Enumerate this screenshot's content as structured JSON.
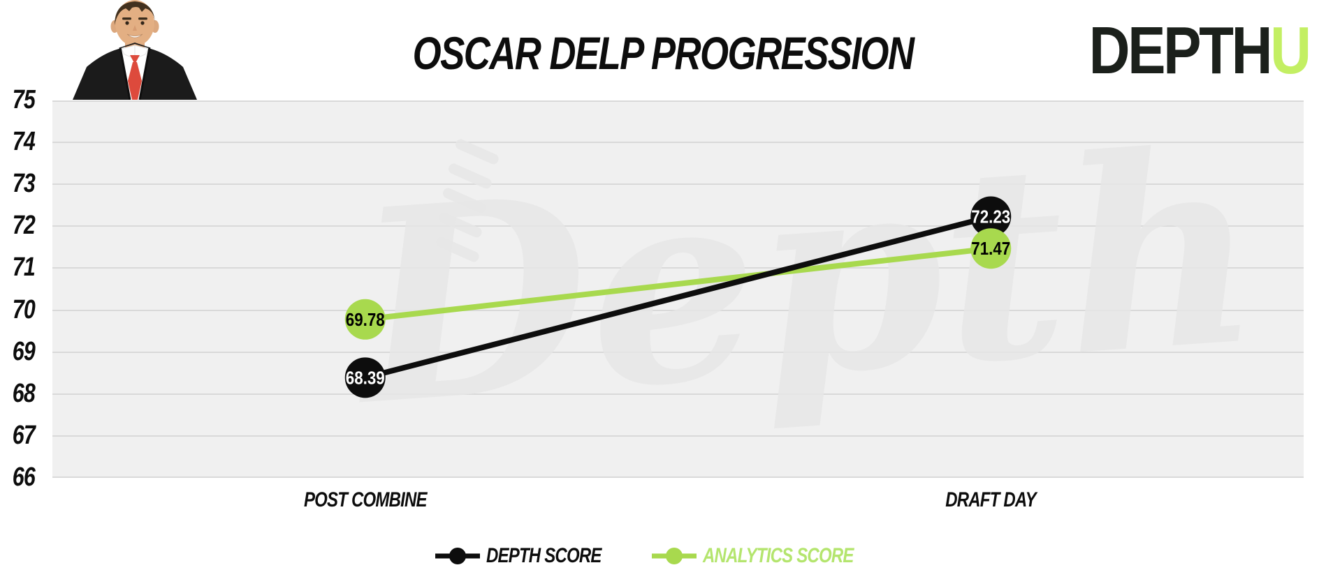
{
  "title": "OSCAR DELP PROGRESSION",
  "logo": {
    "depth": "DEPTH",
    "u": "U"
  },
  "watermark": "Depth",
  "photo": {
    "icon": "player-headshot"
  },
  "legend": [
    {
      "label": "DEPTH SCORE",
      "color": "#0d0d0d",
      "label_color": "#0d0d0d"
    },
    {
      "label": "ANALYTICS SCORE",
      "color": "#a8d94e",
      "label_color": "#b4e56e"
    }
  ],
  "chart_data": {
    "type": "line",
    "title": "OSCAR DELP PROGRESSION",
    "categories": [
      "POST COMBINE",
      "DRAFT DAY"
    ],
    "series": [
      {
        "name": "DEPTH SCORE",
        "color": "#0d0d0d",
        "label_color": "#ffffff",
        "values": [
          68.39,
          72.23
        ]
      },
      {
        "name": "ANALYTICS SCORE",
        "color": "#a8d94e",
        "label_color": "#000000",
        "values": [
          69.78,
          71.47
        ]
      }
    ],
    "ylim": [
      66,
      75
    ],
    "yticks": [
      75,
      74,
      73,
      72,
      71,
      70,
      69,
      68,
      67,
      66
    ],
    "grid": true,
    "legend_position": "bottom",
    "point_labels": [
      "68.39",
      "72.23",
      "69.78",
      "71.47"
    ]
  },
  "colors": {
    "background": "#ffffff",
    "plot_background": "#f0f0f0",
    "gridline": "#d9d9d9",
    "black": "#0d0d0d",
    "green": "#a8d94e",
    "legend_green_text": "#b4e56e",
    "logo_green": "#c3ef63",
    "watermark_gray": "#e7e7e7"
  }
}
